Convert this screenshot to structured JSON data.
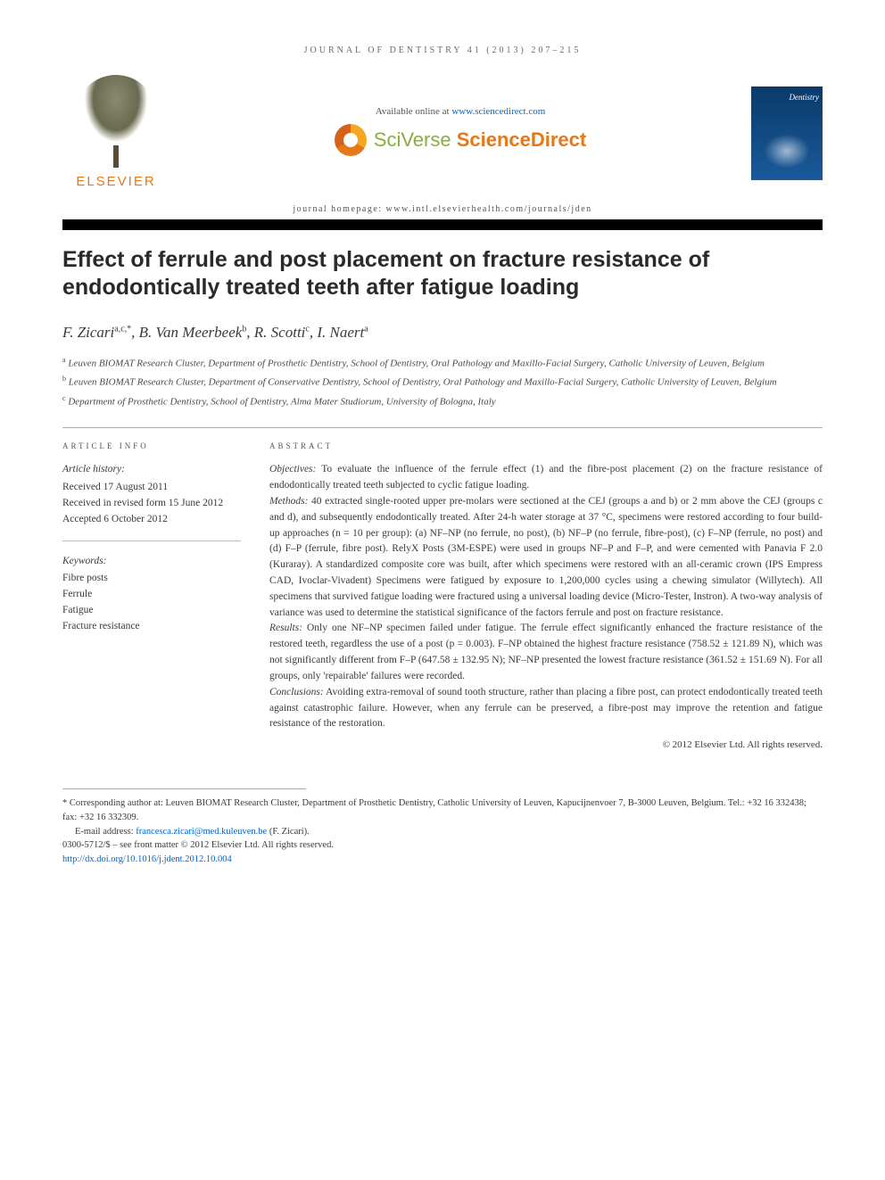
{
  "runningHeader": "JOURNAL OF DENTISTRY 41 (2013) 207–215",
  "banner": {
    "elsevierLabel": "ELSEVIER",
    "availablePrefix": "Available online at ",
    "availableLink": "www.sciencedirect.com",
    "sciversePart1": "SciVerse ",
    "sciversePart2": "ScienceDirect",
    "homepagePrefix": "journal homepage: ",
    "homepageUrl": "www.intl.elsevierhealth.com/journals/jden",
    "coverTitle": "Dentistry"
  },
  "title": "Effect of ferrule and post placement on fracture resistance of endodontically treated teeth after fatigue loading",
  "authors": [
    {
      "name": "F. Zicari",
      "marks": "a,c,*"
    },
    {
      "name": "B. Van Meerbeek",
      "marks": "b"
    },
    {
      "name": "R. Scotti",
      "marks": "c"
    },
    {
      "name": "I. Naert",
      "marks": "a"
    }
  ],
  "affiliations": [
    {
      "mark": "a",
      "text": "Leuven BIOMAT Research Cluster, Department of Prosthetic Dentistry, School of Dentistry, Oral Pathology and Maxillo-Facial Surgery, Catholic University of Leuven, Belgium"
    },
    {
      "mark": "b",
      "text": "Leuven BIOMAT Research Cluster, Department of Conservative Dentistry, School of Dentistry, Oral Pathology and Maxillo-Facial Surgery, Catholic University of Leuven, Belgium"
    },
    {
      "mark": "c",
      "text": "Department of Prosthetic Dentistry, School of Dentistry, Alma Mater Studiorum, University of Bologna, Italy"
    }
  ],
  "articleInfo": {
    "heading": "ARTICLE INFO",
    "historyHead": "Article history:",
    "received": "Received 17 August 2011",
    "revised": "Received in revised form 15 June 2012",
    "accepted": "Accepted 6 October 2012",
    "keywordsHead": "Keywords:",
    "keywords": [
      "Fibre posts",
      "Ferrule",
      "Fatigue",
      "Fracture resistance"
    ]
  },
  "abstract": {
    "heading": "ABSTRACT",
    "objectivesLabel": "Objectives:",
    "objectives": " To evaluate the influence of the ferrule effect (1) and the fibre-post placement (2) on the fracture resistance of endodontically treated teeth subjected to cyclic fatigue loading.",
    "methodsLabel": "Methods:",
    "methods": " 40 extracted single-rooted upper pre-molars were sectioned at the CEJ (groups a and b) or 2 mm above the CEJ (groups c and d), and subsequently endodontically treated. After 24-h water storage at 37 °C, specimens were restored according to four build-up approaches (n = 10 per group): (a) NF–NP (no ferrule, no post), (b) NF–P (no ferrule, fibre-post), (c) F–NP (ferrule, no post) and (d) F–P (ferrule, fibre post). RelyX Posts (3M-ESPE) were used in groups NF–P and F–P, and were cemented with Panavia F 2.0 (Kuraray). A standardized composite core was built, after which specimens were restored with an all-ceramic crown (IPS Empress CAD, Ivoclar-Vivadent) Specimens were fatigued by exposure to 1,200,000 cycles using a chewing simulator (Willytech). All specimens that survived fatigue loading were fractured using a universal loading device (Micro-Tester, Instron). A two-way analysis of variance was used to determine the statistical significance of the factors ferrule and post on fracture resistance.",
    "resultsLabel": "Results:",
    "results": " Only one NF–NP specimen failed under fatigue. The ferrule effect significantly enhanced the fracture resistance of the restored teeth, regardless the use of a post (p = 0.003). F–NP obtained the highest fracture resistance (758.52 ± 121.89 N), which was not significantly different from F–P (647.58 ± 132.95 N); NF–NP presented the lowest fracture resistance (361.52 ± 151.69 N). For all groups, only 'repairable' failures were recorded.",
    "conclusionsLabel": "Conclusions:",
    "conclusions": " Avoiding extra-removal of sound tooth structure, rather than placing a fibre post, can protect endodontically treated teeth against catastrophic failure. However, when any ferrule can be preserved, a fibre-post may improve the retention and fatigue resistance of the restoration.",
    "copyright": "© 2012 Elsevier Ltd. All rights reserved."
  },
  "footnotes": {
    "corr": "* Corresponding author at: Leuven BIOMAT Research Cluster, Department of Prosthetic Dentistry, Catholic University of Leuven, Kapucijnenvoer 7, B-3000 Leuven, Belgium. Tel.: +32 16 332438; fax: +32 16 332309.",
    "emailLabel": "E-mail address: ",
    "email": "francesca.zicari@med.kuleuven.be",
    "emailSuffix": " (F. Zicari).",
    "issn": "0300-5712/$ – see front matter © 2012 Elsevier Ltd. All rights reserved.",
    "doiPrefix": "http://dx.doi.org/",
    "doi": "10.1016/j.jdent.2012.10.004"
  }
}
